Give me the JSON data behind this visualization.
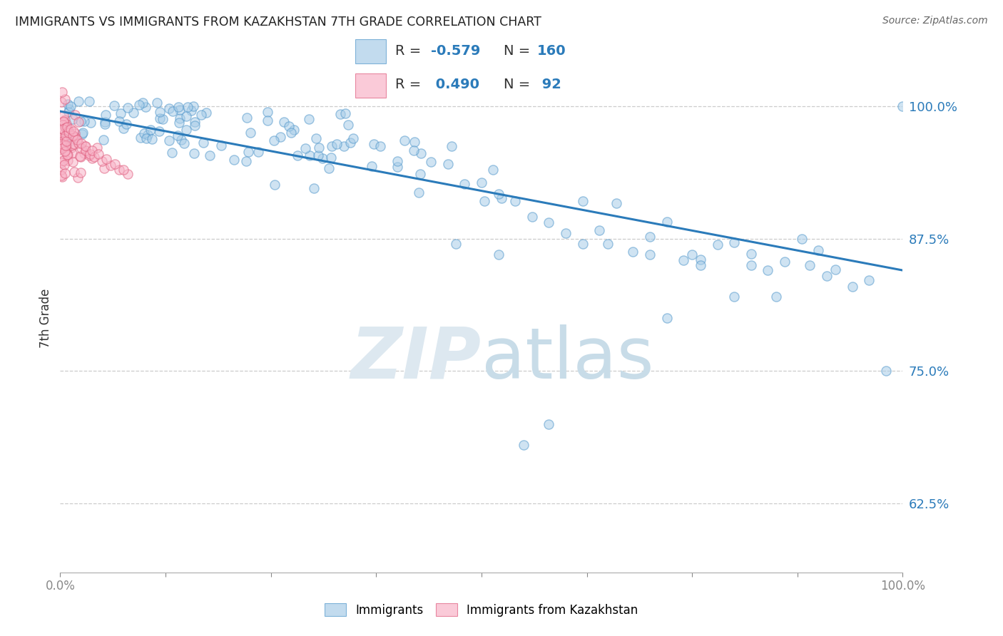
{
  "title": "IMMIGRANTS VS IMMIGRANTS FROM KAZAKHSTAN 7TH GRADE CORRELATION CHART",
  "source": "Source: ZipAtlas.com",
  "ylabel": "7th Grade",
  "ytick_labels": [
    "100.0%",
    "87.5%",
    "75.0%",
    "62.5%"
  ],
  "ytick_values": [
    1.0,
    0.875,
    0.75,
    0.625
  ],
  "legend_blue_label": "R = -0.579   N = 160",
  "legend_pink_label": "R =  0.490   N =  92",
  "blue_color": "#a8cde8",
  "blue_edge_color": "#5599cc",
  "pink_color": "#f8b4c8",
  "pink_edge_color": "#e06080",
  "trendline_color": "#2b7bba",
  "grid_color": "#cccccc",
  "watermark_color": "#dde8f0",
  "trendline_x": [
    0.0,
    1.0
  ],
  "trendline_y": [
    0.995,
    0.845
  ],
  "xlim": [
    0.0,
    1.0
  ],
  "ylim": [
    0.56,
    1.04
  ],
  "scatter_size": 90,
  "scatter_alpha": 0.55,
  "scatter_linewidth": 1.0,
  "seed_blue": 17,
  "seed_pink": 31
}
